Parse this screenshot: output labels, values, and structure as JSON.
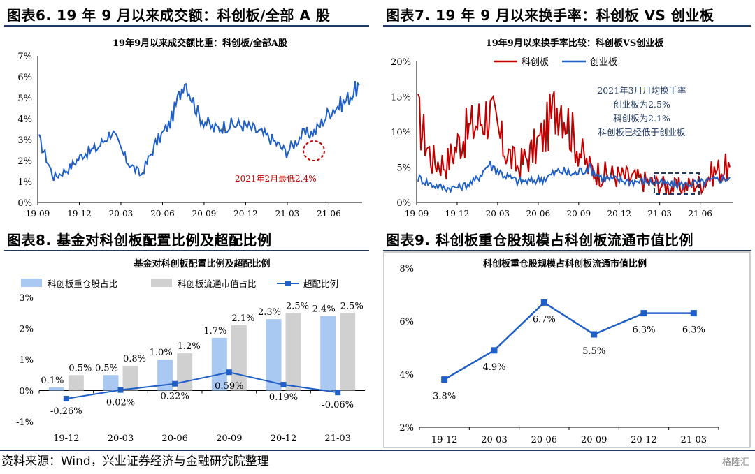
{
  "source": "资料来源：Wind，兴业证券经济与金融研究院整理",
  "watermark": "格隆汇",
  "colors": {
    "blue": "#1f5fc6",
    "red": "#c00000",
    "lightblue": "#a9c8f2",
    "gray": "#d0d0d0",
    "navy": "#1f3864"
  },
  "charts": [
    {
      "banner": "图表6. 19 年 9 月以来成交额：科创板/全部 A 股",
      "chart_data": {
        "type": "line",
        "title": "19年9月以来成交额比重：科创板/全部A股",
        "ylim": [
          0,
          7
        ],
        "yticks": [
          "0%",
          "1%",
          "2%",
          "3%",
          "4%",
          "5%",
          "6%",
          "7%"
        ],
        "xticks": [
          "19-09",
          "19-12",
          "20-03",
          "20-06",
          "20-09",
          "20-12",
          "21-03",
          "21-06"
        ],
        "annotation": "2021年2月最低2.4%",
        "series": [
          {
            "color": "#1f5fc6",
            "x": [
              "19-09",
              "19-10",
              "19-11",
              "19-12",
              "20-01",
              "20-02",
              "20-03",
              "20-04",
              "20-05",
              "20-06",
              "20-07",
              "20-08",
              "20-09",
              "20-10",
              "20-11",
              "20-12",
              "21-01",
              "21-02",
              "21-03",
              "21-04",
              "21-05",
              "21-06",
              "21-07"
            ],
            "values": [
              3.0,
              1.2,
              1.6,
              2.3,
              2.6,
              3.4,
              2.0,
              1.3,
              2.8,
              3.8,
              5.9,
              4.1,
              3.5,
              3.7,
              3.7,
              3.4,
              3.0,
              2.4,
              3.2,
              3.4,
              4.4,
              4.8,
              5.6
            ]
          }
        ]
      }
    },
    {
      "banner": "图表7. 19 年 9 月以来换手率：科创板 VS 创业板",
      "chart_data": {
        "type": "line",
        "title": "19年9月以来换手率比较：科创板VS创业板",
        "ylim": [
          0,
          20
        ],
        "yticks": [
          "0%",
          "5%",
          "10%",
          "15%",
          "20%"
        ],
        "xticks": [
          "19-09",
          "19-12",
          "20-03",
          "20-06",
          "20-09",
          "20-12",
          "21-03",
          "21-06"
        ],
        "annotation_lines": [
          "2021年3月月均换手率",
          "创业板为2.5%",
          "科创板为2.1%",
          "科创板已经低于创业板"
        ],
        "series": [
          {
            "name": "科创板",
            "color": "#c00000",
            "x": [
              "19-09",
              "19-10",
              "19-11",
              "19-12",
              "20-01",
              "20-02",
              "20-03",
              "20-04",
              "20-05",
              "20-06",
              "20-07",
              "20-08",
              "20-09",
              "20-10",
              "20-11",
              "20-12",
              "21-01",
              "21-02",
              "21-03",
              "21-04",
              "21-05",
              "21-06",
              "21-07"
            ],
            "values": [
              12.0,
              6.0,
              5.5,
              9.0,
              11.0,
              13.0,
              8.0,
              5.0,
              7.0,
              10.0,
              15.0,
              9.0,
              5.0,
              4.0,
              3.8,
              3.5,
              3.0,
              2.6,
              2.1,
              2.4,
              2.8,
              4.5,
              5.0
            ]
          },
          {
            "name": "创业板",
            "color": "#1f5fc6",
            "x": [
              "19-09",
              "19-10",
              "19-11",
              "19-12",
              "20-01",
              "20-02",
              "20-03",
              "20-04",
              "20-05",
              "20-06",
              "20-07",
              "20-08",
              "20-09",
              "20-10",
              "20-11",
              "20-12",
              "21-01",
              "21-02",
              "21-03",
              "21-04",
              "21-05",
              "21-06",
              "21-07"
            ],
            "values": [
              3.5,
              2.5,
              2.0,
              2.2,
              3.0,
              5.5,
              4.0,
              3.0,
              3.0,
              3.5,
              4.5,
              4.0,
              5.0,
              3.5,
              3.2,
              3.0,
              3.0,
              2.8,
              2.5,
              2.6,
              2.8,
              3.2,
              3.6
            ]
          }
        ]
      }
    },
    {
      "banner": "图表8. 基金对科创板配置比例及超配比例",
      "chart_data": {
        "type": "bar",
        "title": "基金对科创板配置比例及超配比例",
        "categories": [
          "19-12",
          "20-03",
          "20-06",
          "20-09",
          "20-12",
          "21-03"
        ],
        "ylim": [
          -1,
          3
        ],
        "yticks": [
          "-1%",
          "0%",
          "1%",
          "2%",
          "3%"
        ],
        "series": [
          {
            "name": "科创板重仓股占比",
            "kind": "bar",
            "color": "#a9c8f2",
            "values": [
              0.1,
              0.5,
              1.0,
              1.7,
              2.3,
              2.4
            ],
            "labels": [
              "0.1%",
              "0.5%",
              "1.0%",
              "1.7%",
              "2.3%",
              "2.4%"
            ]
          },
          {
            "name": "科创板流通市值占比",
            "kind": "bar",
            "color": "#d0d0d0",
            "values": [
              0.5,
              0.8,
              1.2,
              2.1,
              2.5,
              2.5
            ],
            "labels": [
              "0.5%",
              "0.8%",
              "1.2%",
              "2.1%",
              "2.5%",
              "2.5%"
            ]
          },
          {
            "name": "超配比例",
            "kind": "line",
            "color": "#1f5fc6",
            "values": [
              -0.26,
              0.02,
              0.22,
              0.59,
              0.19,
              -0.06
            ],
            "labels": [
              "-0.26%",
              "0.02%",
              "0.22%",
              "0.59%",
              "0.19%",
              "-0.06%"
            ]
          }
        ]
      }
    },
    {
      "banner": "图表9. 科创板重仓股规模占科创板流通市值比例",
      "chart_data": {
        "type": "line",
        "title": "科创板重仓股规模占科创板流通市值比例",
        "categories": [
          "19-12",
          "20-03",
          "20-06",
          "20-09",
          "20-12",
          "21-03"
        ],
        "ylim": [
          2,
          8
        ],
        "yticks": [
          "2%",
          "4%",
          "6%",
          "8%"
        ],
        "series": [
          {
            "color": "#1f5fc6",
            "values": [
              3.8,
              4.9,
              6.7,
              5.5,
              6.3,
              6.3
            ],
            "labels": [
              "3.8%",
              "4.9%",
              "6.7%",
              "5.5%",
              "6.3%",
              "6.3%"
            ]
          }
        ]
      }
    }
  ]
}
